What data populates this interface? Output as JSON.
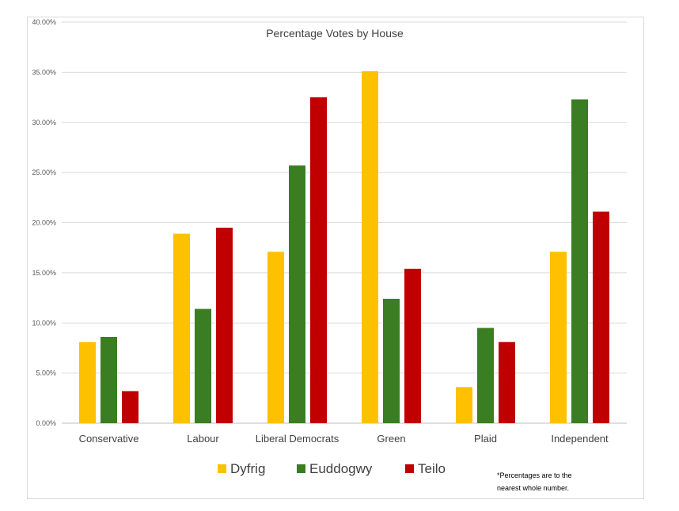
{
  "chart_data": {
    "type": "bar",
    "title": "Percentage Votes by House",
    "categories": [
      "Conservative",
      "Labour",
      "Liberal Democrats",
      "Green",
      "Plaid",
      "Independent"
    ],
    "series": [
      {
        "name": "Dyfrig",
        "color": "#FFC000",
        "values": [
          8.1,
          18.9,
          17.1,
          35.1,
          3.6,
          17.1
        ]
      },
      {
        "name": "Euddogwy",
        "color": "#3A7D23",
        "values": [
          8.6,
          11.4,
          25.7,
          12.4,
          9.5,
          32.3
        ]
      },
      {
        "name": "Teilo",
        "color": "#C00000",
        "values": [
          3.2,
          19.5,
          32.5,
          15.4,
          8.1,
          21.1
        ]
      }
    ],
    "ylim": [
      0,
      40
    ],
    "yticks": [
      "0.00%",
      "5.00%",
      "10.00%",
      "15.00%",
      "20.00%",
      "25.00%",
      "30.00%",
      "35.00%",
      "40.00%"
    ],
    "xlabel": "",
    "ylabel": "",
    "grid": true,
    "legend_position": "bottom",
    "note": [
      "*Percentages are to the",
      "nearest whole number."
    ]
  }
}
